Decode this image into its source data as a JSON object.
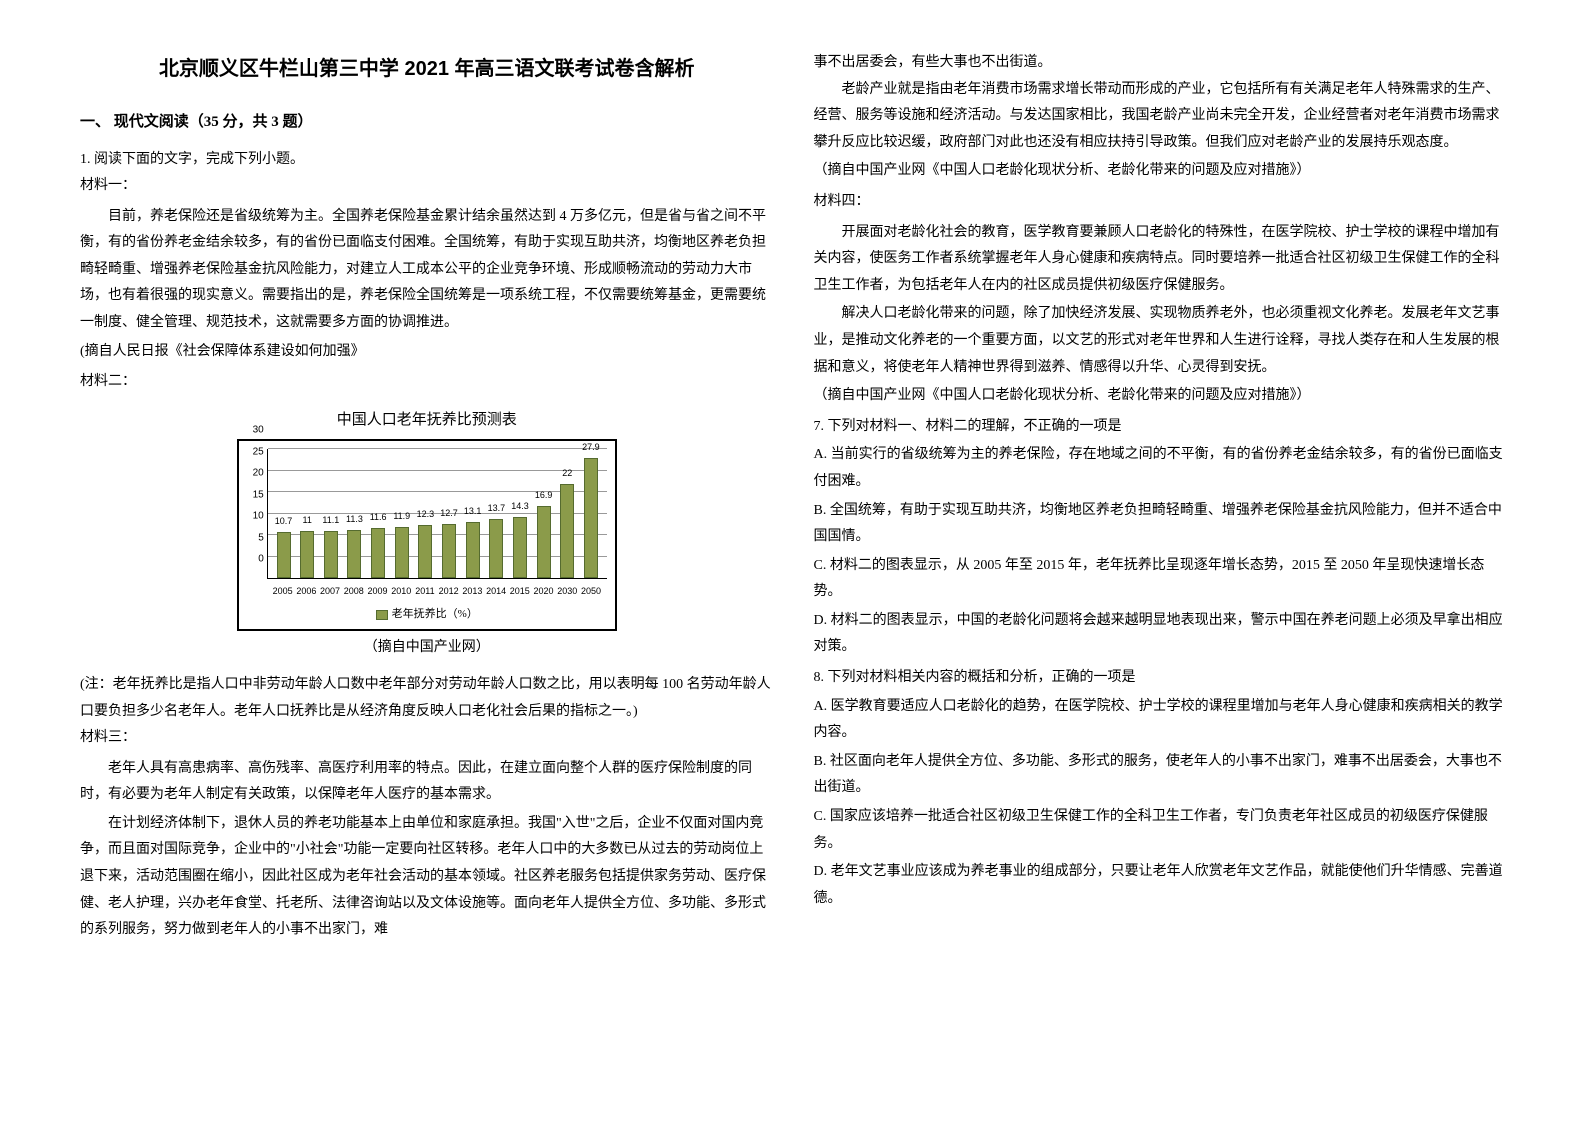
{
  "title": "北京顺义区牛栏山第三中学 2021 年高三语文联考试卷含解析",
  "section1": {
    "heading": "一、 现代文阅读（35 分，共 3 题）",
    "q1_intro": "1. 阅读下面的文字，完成下列小题。",
    "material1_label": "材料一：",
    "material1_p1": "目前，养老保险还是省级统筹为主。全国养老保险基金累计结余虽然达到 4 万多亿元，但是省与省之间不平衡，有的省份养老金结余较多，有的省份已面临支付困难。全国统筹，有助于实现互助共济，均衡地区养老负担畸轻畸重、增强养老保险基金抗风险能力，对建立人工成本公平的企业竞争环境、形成顺畅流动的劳动力大市场，也有着很强的现实意义。需要指出的是，养老保险全国统筹是一项系统工程，不仅需要统筹基金，更需要统一制度、健全管理、规范技术，这就需要多方面的协调推进。",
    "material1_source": "(摘自人民日报《社会保障体系建设如何加强》",
    "material2_label": "材料二：",
    "chart": {
      "title": "中国人口老年抚养比预测表",
      "type": "bar",
      "categories": [
        "2005",
        "2006",
        "2007",
        "2008",
        "2009",
        "2010",
        "2011",
        "2012",
        "2013",
        "2014",
        "2015",
        "2020",
        "2030",
        "2050"
      ],
      "values": [
        10.7,
        11.0,
        11.1,
        11.3,
        11.6,
        11.9,
        12.3,
        12.7,
        13.1,
        13.7,
        14.3,
        16.9,
        22.0,
        27.9
      ],
      "bar_color": "#8b9b4a",
      "bar_border": "#556b2f",
      "ylim": [
        0,
        30
      ],
      "ytick_step": 5,
      "yticks": [
        0,
        5,
        10,
        15,
        20,
        25,
        30
      ],
      "grid_color": "#999999",
      "background_color": "#ffffff",
      "legend": "老年抚养比（%）",
      "source": "（摘自中国产业网）"
    },
    "chart_note": "(注：老年抚养比是指人口中非劳动年龄人口数中老年部分对劳动年龄人口数之比，用以表明每 100 名劳动年龄人口要负担多少名老年人。老年人口抚养比是从经济角度反映人口老化社会后果的指标之一。)",
    "material3_label": "材料三：",
    "material3_p1": "老年人具有高患病率、高伤残率、高医疗利用率的特点。因此，在建立面向整个人群的医疗保险制度的同时，有必要为老年人制定有关政策，以保障老年人医疗的基本需求。",
    "material3_p2": "在计划经济体制下，退休人员的养老功能基本上由单位和家庭承担。我国\"入世\"之后，企业不仅面对国内竞争，而且面对国际竞争，企业中的\"小社会\"功能一定要向社区转移。老年人口中的大多数已从过去的劳动岗位上退下来，活动范围圈在缩小，因此社区成为老年社会活动的基本领域。社区养老服务包括提供家务劳动、医疗保健、老人护理，兴办老年食堂、托老所、法律咨询站以及文体设施等。面向老年人提供全方位、多功能、多形式的系列服务，努力做到老年人的小事不出家门，难"
  },
  "col2": {
    "material3_p2_cont": "事不出居委会，有些大事也不出街道。",
    "material3_p3": "老龄产业就是指由老年消费市场需求增长带动而形成的产业，它包括所有有关满足老年人特殊需求的生产、经营、服务等设施和经济活动。与发达国家相比，我国老龄产业尚未完全开发，企业经营者对老年消费市场需求攀升反应比较迟缓，政府部门对此也还没有相应扶持引导政策。但我们应对老龄产业的发展持乐观态度。",
    "material3_source": "（摘自中国产业网《中国人口老龄化现状分析、老龄化带来的问题及应对措施》）",
    "material4_label": "材料四：",
    "material4_p1": "开展面对老龄化社会的教育，医学教育要兼顾人口老龄化的特殊性，在医学院校、护士学校的课程中增加有关内容，使医务工作者系统掌握老年人身心健康和疾病特点。同时要培养一批适合社区初级卫生保健工作的全科卫生工作者，为包括老年人在内的社区成员提供初级医疗保健服务。",
    "material4_p2": "解决人口老龄化带来的问题，除了加快经济发展、实现物质养老外，也必须重视文化养老。发展老年文艺事业，是推动文化养老的一个重要方面，以文艺的形式对老年世界和人生进行诠释，寻找人类存在和人生发展的根据和意义，将使老年人精神世界得到滋养、情感得以升华、心灵得到安抚。",
    "material4_source": "（摘自中国产业网《中国人口老龄化现状分析、老龄化带来的问题及应对措施》）",
    "q7": "7.  下列对材料一、材料二的理解，不正确的一项是",
    "q7_a": "A.  当前实行的省级统筹为主的养老保险，存在地域之间的不平衡，有的省份养老金结余较多，有的省份已面临支付困难。",
    "q7_b": "B.  全国统筹，有助于实现互助共济，均衡地区养老负担畸轻畸重、增强养老保险基金抗风险能力，但并不适合中国国情。",
    "q7_c": "C.  材料二的图表显示，从 2005 年至 2015 年，老年抚养比呈现逐年增长态势，2015 至 2050 年呈现快速增长态势。",
    "q7_d": "D.  材料二的图表显示，中国的老龄化问题将会越来越明显地表现出来，警示中国在养老问题上必须及早拿出相应对策。",
    "q8": "8.  下列对材料相关内容的概括和分析，正确的一项是",
    "q8_a": "A.  医学教育要适应人口老龄化的趋势，在医学院校、护士学校的课程里增加与老年人身心健康和疾病相关的教学内容。",
    "q8_b": "B.  社区面向老年人提供全方位、多功能、多形式的服务，使老年人的小事不出家门，难事不出居委会，大事也不出街道。",
    "q8_c": "C.  国家应该培养一批适合社区初级卫生保健工作的全科卫生工作者，专门负责老年社区成员的初级医疗保健服务。",
    "q8_d": "D.  老年文艺事业应该成为养老事业的组成部分，只要让老年人欣赏老年文艺作品，就能使他们升华情感、完善道德。"
  }
}
